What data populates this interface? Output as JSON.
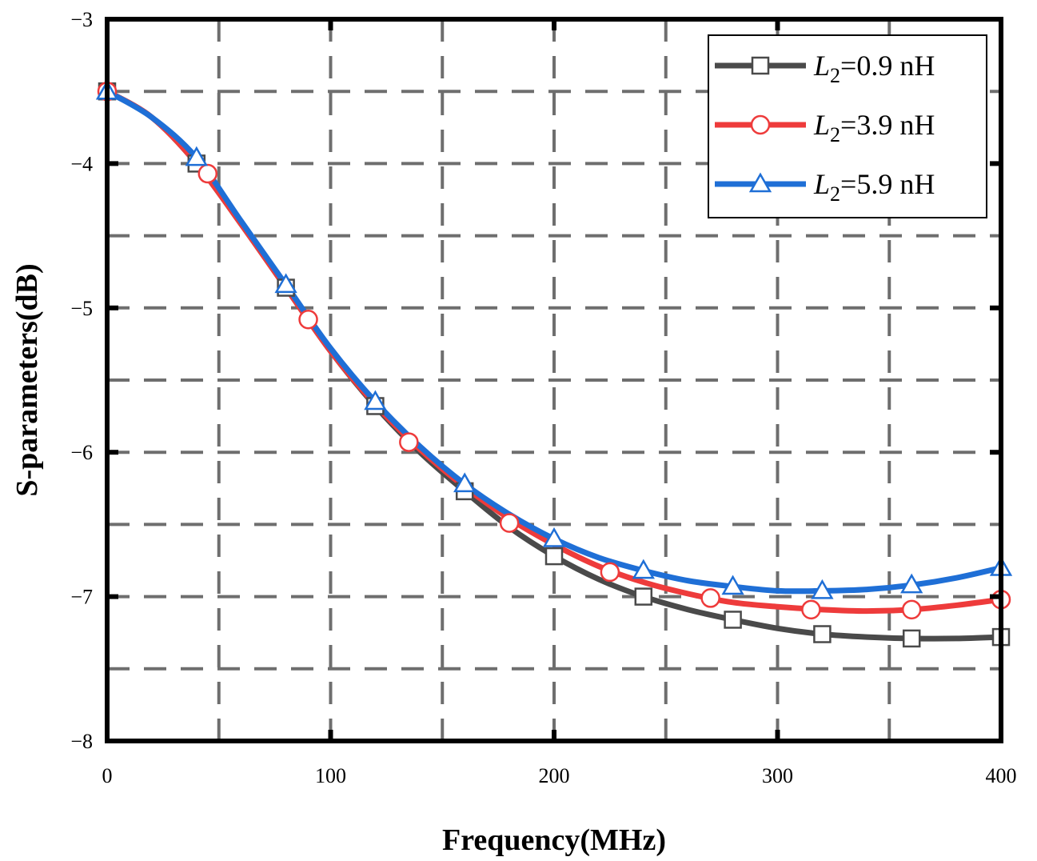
{
  "chart_data": {
    "type": "line",
    "xlabel": "Frequency(MHz)",
    "ylabel": "S-parameters(dB)",
    "xlim": [
      0,
      400
    ],
    "ylim": [
      -8,
      -3
    ],
    "xticks": [
      0,
      100,
      200,
      300,
      400
    ],
    "xtick_labels": [
      "0",
      "100",
      "200",
      "300",
      "400"
    ],
    "yticks": [
      -8,
      -7,
      -6,
      -5,
      -4,
      -3
    ],
    "ytick_labels": [
      "−8",
      "−7",
      "−6",
      "−5",
      "−4",
      "−3"
    ],
    "grid": true,
    "grid_style": "dashed",
    "legend_position": "top-right",
    "series": [
      {
        "name": "L2=0.9 nH",
        "legend_italic": "L",
        "legend_sub": "2",
        "legend_rest": "=0.9 nH",
        "color": "#4a4a4a",
        "marker": "square",
        "x": [
          0,
          20,
          40,
          60,
          80,
          100,
          120,
          140,
          160,
          180,
          200,
          220,
          240,
          260,
          280,
          300,
          320,
          340,
          360,
          380,
          400
        ],
        "y": [
          -3.5,
          -3.68,
          -4.0,
          -4.42,
          -4.86,
          -5.3,
          -5.68,
          -6.0,
          -6.27,
          -6.52,
          -6.72,
          -6.88,
          -7.0,
          -7.09,
          -7.16,
          -7.22,
          -7.26,
          -7.28,
          -7.29,
          -7.29,
          -7.28
        ],
        "markers_x": [
          0,
          40,
          80,
          120,
          160,
          200,
          240,
          280,
          320,
          360,
          400
        ],
        "markers_y": [
          -3.5,
          -4.0,
          -4.86,
          -5.68,
          -6.27,
          -6.72,
          -7.0,
          -7.16,
          -7.26,
          -7.29,
          -7.28
        ]
      },
      {
        "name": "L2=3.9 nH",
        "legend_italic": "L",
        "legend_sub": "2",
        "legend_rest": "=3.9 nH",
        "color": "#ee3b3b",
        "marker": "circle",
        "x": [
          0,
          20,
          40,
          60,
          80,
          100,
          120,
          140,
          160,
          180,
          200,
          220,
          240,
          260,
          280,
          300,
          320,
          340,
          360,
          380,
          400
        ],
        "y": [
          -3.5,
          -3.68,
          -4.0,
          -4.42,
          -4.86,
          -5.3,
          -5.67,
          -5.98,
          -6.24,
          -6.46,
          -6.64,
          -6.79,
          -6.9,
          -6.98,
          -7.04,
          -7.07,
          -7.09,
          -7.1,
          -7.09,
          -7.06,
          -7.02
        ],
        "markers_x": [
          0,
          45,
          90,
          135,
          180,
          225,
          270,
          315,
          360,
          400
        ],
        "markers_y": [
          -3.5,
          -4.07,
          -5.08,
          -5.93,
          -6.49,
          -6.83,
          -7.01,
          -7.09,
          -7.09,
          -7.02
        ]
      },
      {
        "name": "L2=5.9 nH",
        "legend_italic": "L",
        "legend_sub": "2",
        "legend_rest": "=5.9 nH",
        "color": "#1f6fd6",
        "marker": "triangle",
        "x": [
          0,
          20,
          40,
          60,
          80,
          100,
          120,
          140,
          160,
          180,
          200,
          220,
          240,
          260,
          280,
          300,
          320,
          340,
          360,
          380,
          400
        ],
        "y": [
          -3.5,
          -3.68,
          -3.96,
          -4.4,
          -4.84,
          -5.28,
          -5.65,
          -5.96,
          -6.22,
          -6.43,
          -6.6,
          -6.73,
          -6.82,
          -6.89,
          -6.93,
          -6.96,
          -6.96,
          -6.95,
          -6.92,
          -6.87,
          -6.8
        ],
        "markers_x": [
          0,
          40,
          80,
          120,
          160,
          200,
          240,
          280,
          320,
          360,
          400
        ],
        "markers_y": [
          -3.5,
          -3.96,
          -4.84,
          -5.65,
          -6.22,
          -6.6,
          -6.82,
          -6.93,
          -6.96,
          -6.92,
          -6.8
        ]
      }
    ]
  }
}
